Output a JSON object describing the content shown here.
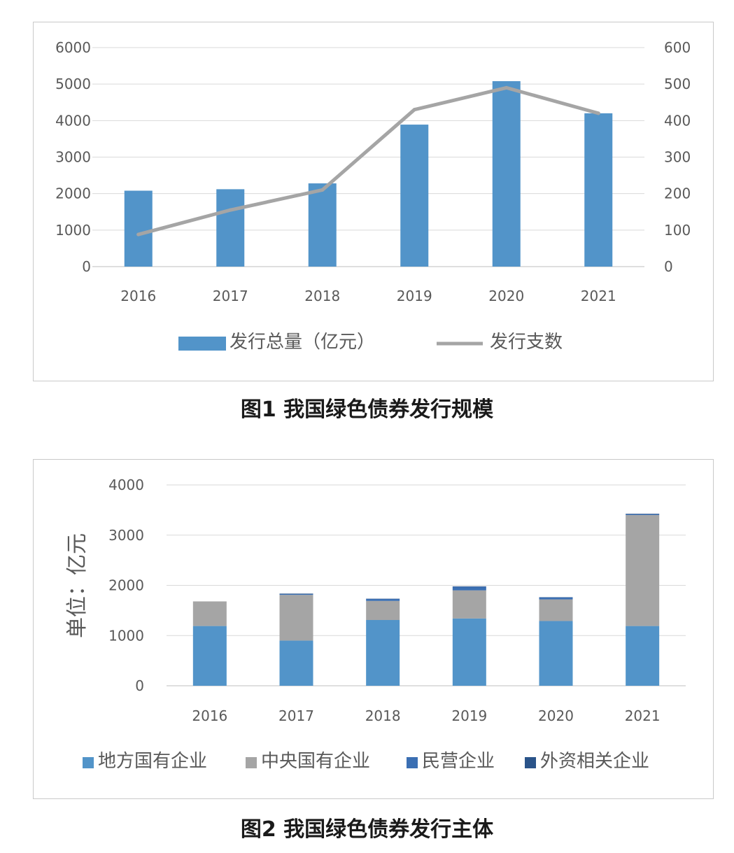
{
  "charts": {
    "chart_data": [
      {
        "type": "bar",
        "title": "",
        "categories": [
          "2016",
          "2017",
          "2018",
          "2019",
          "2020",
          "2021"
        ],
        "ylim": [
          0,
          6000
        ],
        "y_ticks": [
          "0",
          "1000",
          "2000",
          "3000",
          "4000",
          "5000",
          "6000"
        ],
        "y2lim": [
          0,
          600
        ],
        "y2_ticks": [
          "0",
          "100",
          "200",
          "300",
          "400",
          "500",
          "600"
        ],
        "grid": true,
        "legend": "bottom",
        "series": [
          {
            "name": "发行总量（亿元）",
            "type": "bar",
            "axis": "left",
            "color": "#5294c9",
            "values": [
              2080,
              2120,
              2280,
              3890,
              5080,
              4200
            ]
          },
          {
            "name": "发行支数",
            "type": "line",
            "axis": "right",
            "color": "#a5a5a5",
            "values": [
              88,
              155,
              210,
              430,
              490,
              420
            ]
          }
        ]
      },
      {
        "type": "bar",
        "stacked": true,
        "title": "",
        "categories": [
          "2016",
          "2017",
          "2018",
          "2019",
          "2020",
          "2021"
        ],
        "ylabel": "单位：亿元",
        "ylim": [
          0,
          4000
        ],
        "y_ticks": [
          "0",
          "1000",
          "2000",
          "3000",
          "4000"
        ],
        "grid": true,
        "legend": "bottom",
        "series": [
          {
            "name": "地方国有企业",
            "color": "#5294c9",
            "values": [
              1190,
              900,
              1310,
              1340,
              1290,
              1190
            ]
          },
          {
            "name": "中央国有企业",
            "color": "#a5a5a5",
            "values": [
              490,
              910,
              380,
              560,
              430,
              2210
            ]
          },
          {
            "name": "民营企业",
            "color": "#3b6fb3",
            "values": [
              0,
              15,
              40,
              70,
              40,
              15
            ]
          },
          {
            "name": "外资相关企业",
            "color": "#2a5389",
            "values": [
              0,
              10,
              5,
              10,
              5,
              10
            ]
          }
        ]
      }
    ]
  },
  "captions": {
    "fig1": "图1  我国绿色债券发行规模",
    "fig2": "图2  我国绿色债券发行主体"
  }
}
